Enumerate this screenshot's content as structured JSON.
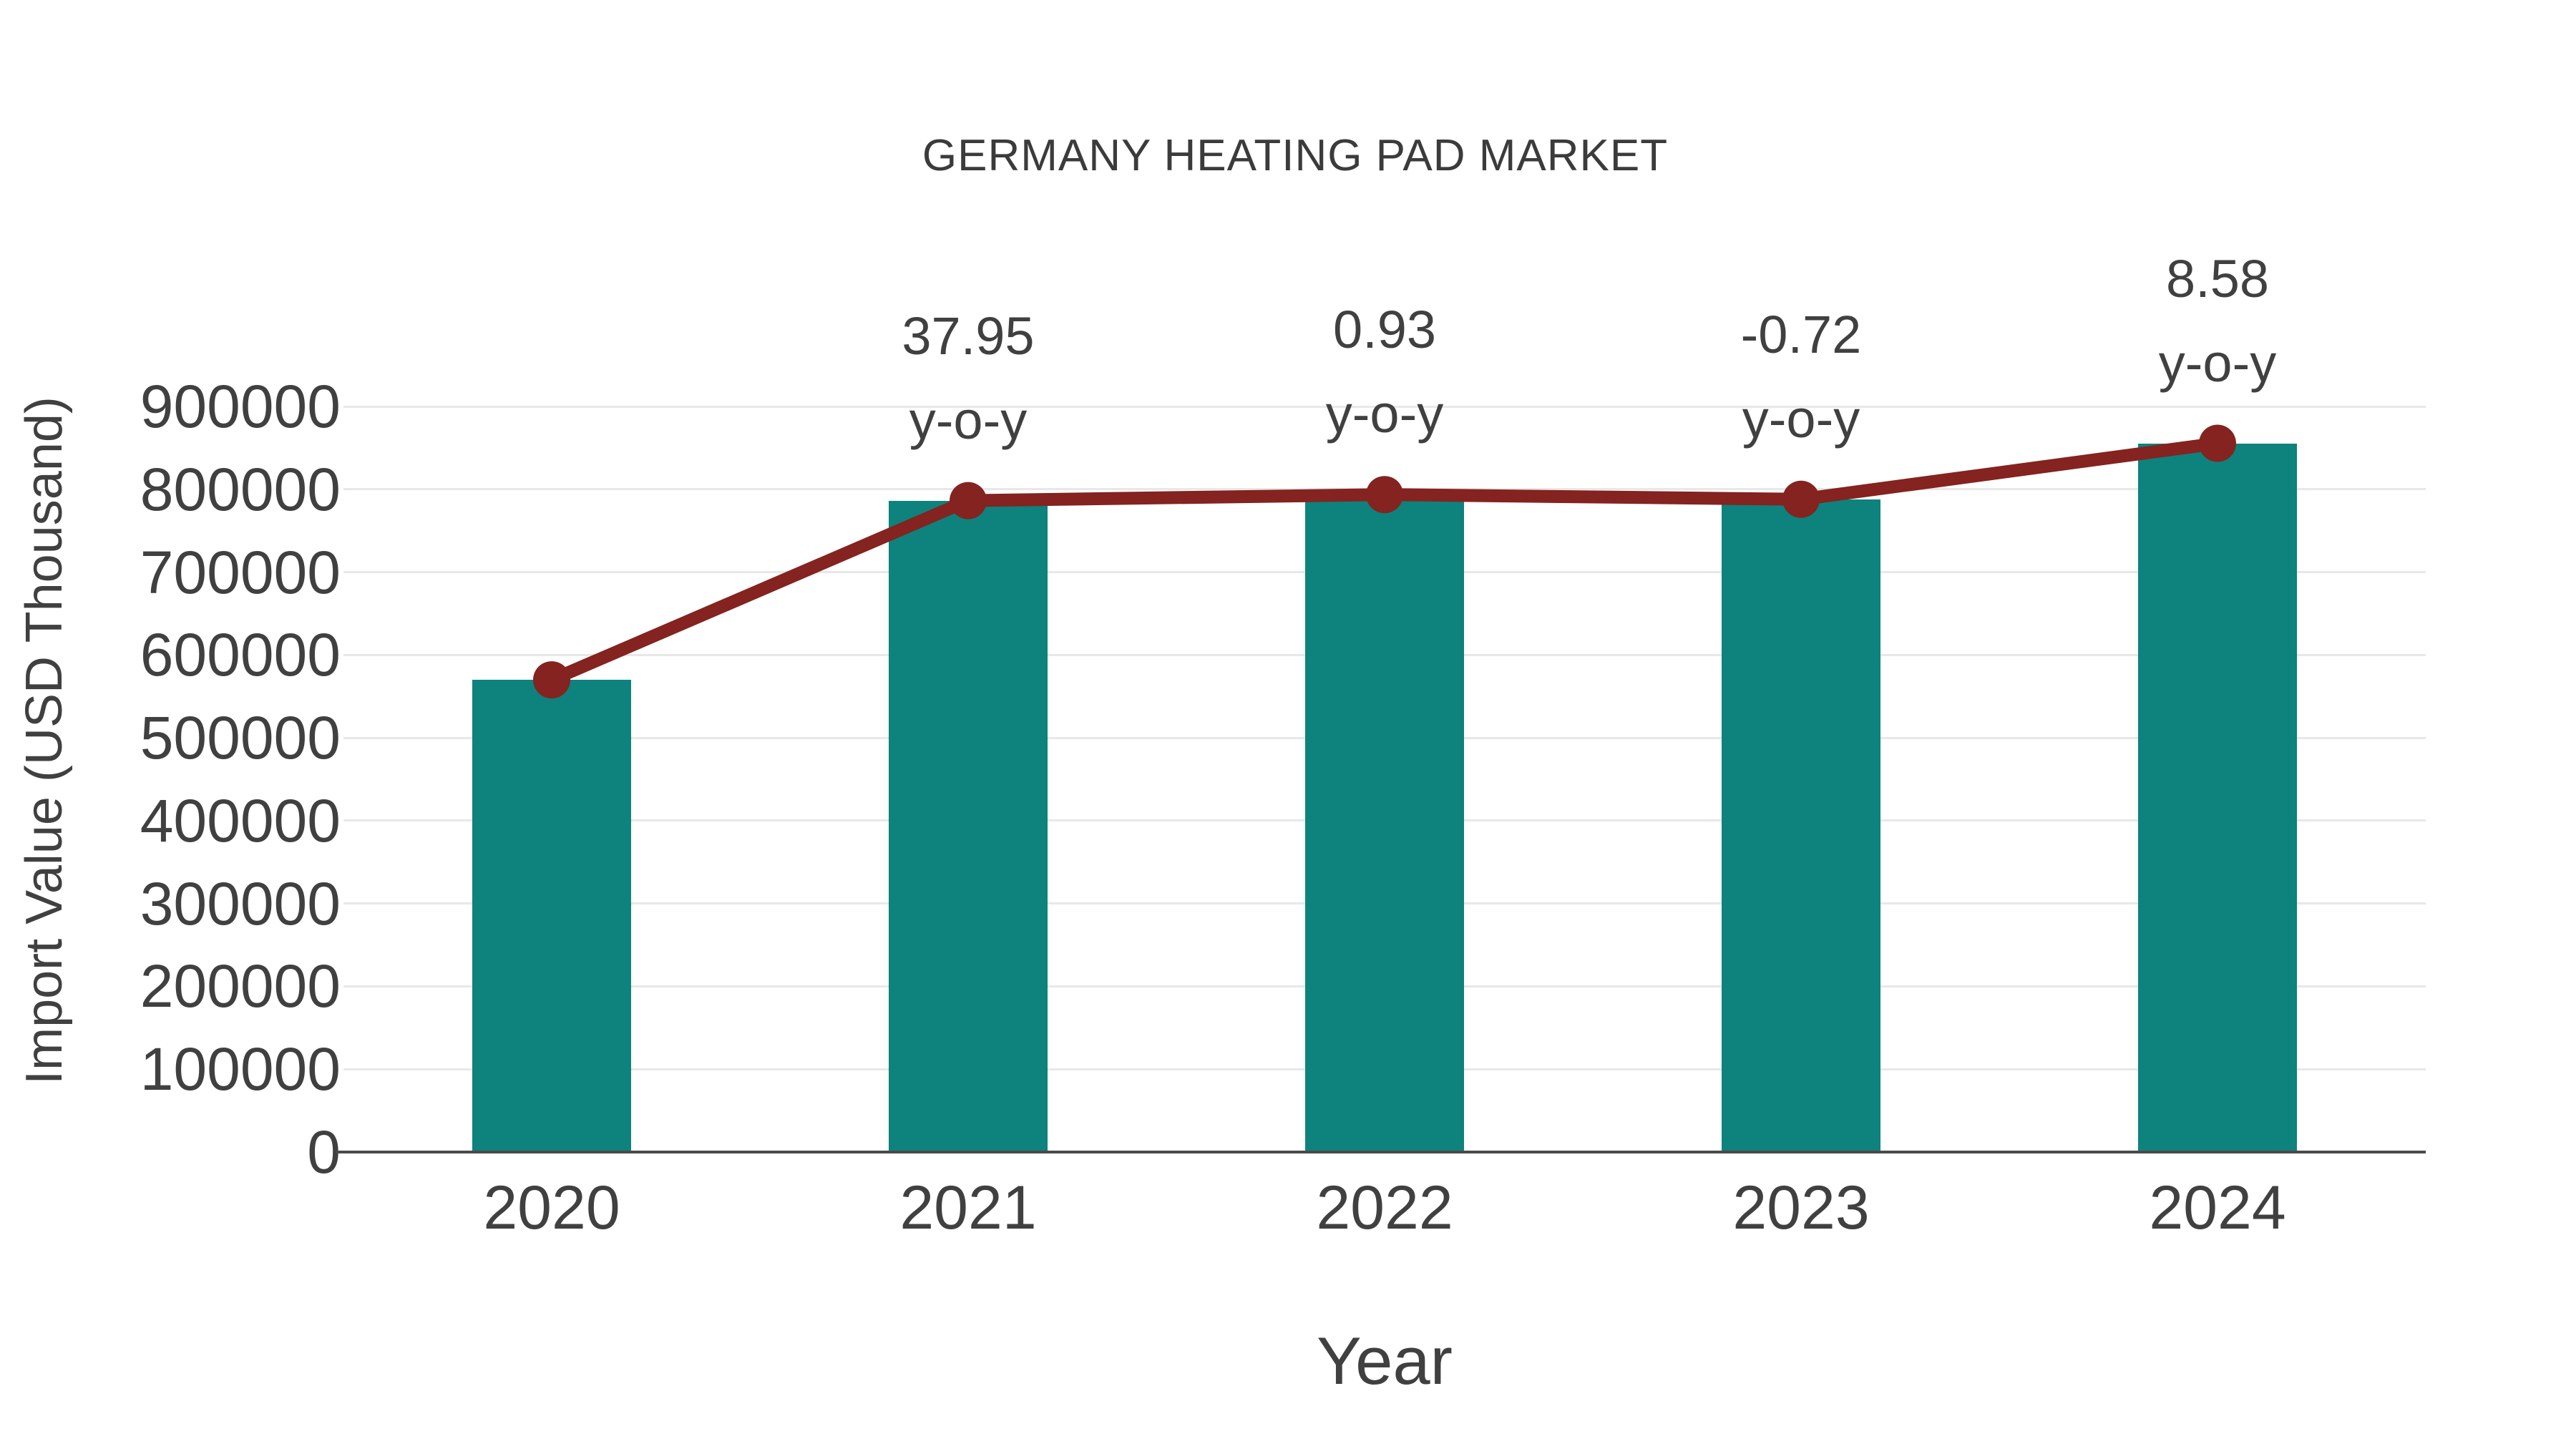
{
  "chart_data": {
    "type": "bar",
    "title": "GERMANY HEATING PAD MARKET",
    "xlabel": "Year",
    "ylabel": "Import Value (USD Thousand)",
    "categories": [
      "2020",
      "2021",
      "2022",
      "2023",
      "2024"
    ],
    "series": [
      {
        "name": "Import Value (USD Thousand) bars",
        "type": "bar",
        "values": [
          570000,
          786300,
          793600,
          787900,
          855500
        ]
      },
      {
        "name": "Import Value trend line",
        "type": "line",
        "values": [
          570000,
          786300,
          793600,
          787900,
          855500
        ]
      }
    ],
    "annotations": [
      {
        "category": "2021",
        "value": "37.95",
        "label": "y-o-y"
      },
      {
        "category": "2022",
        "value": "0.93",
        "label": "y-o-y"
      },
      {
        "category": "2023",
        "value": "-0.72",
        "label": "y-o-y"
      },
      {
        "category": "2024",
        "value": "8.58",
        "label": "y-o-y"
      }
    ],
    "yoy_percent": {
      "2021": 37.95,
      "2022": 0.93,
      "2023": -0.72,
      "2024": 8.58
    },
    "ylim": [
      0,
      900000
    ],
    "ytick_step": 100000,
    "grid": "horizontal",
    "legend": "none",
    "colors": {
      "bar": "#0e827d",
      "line": "#84231f",
      "marker": "#84231f",
      "grid": "#e8e8e8",
      "axis": "#4a4a4a",
      "text": "#404040",
      "title": "#3b3b3b",
      "background": "#ffffff"
    }
  }
}
